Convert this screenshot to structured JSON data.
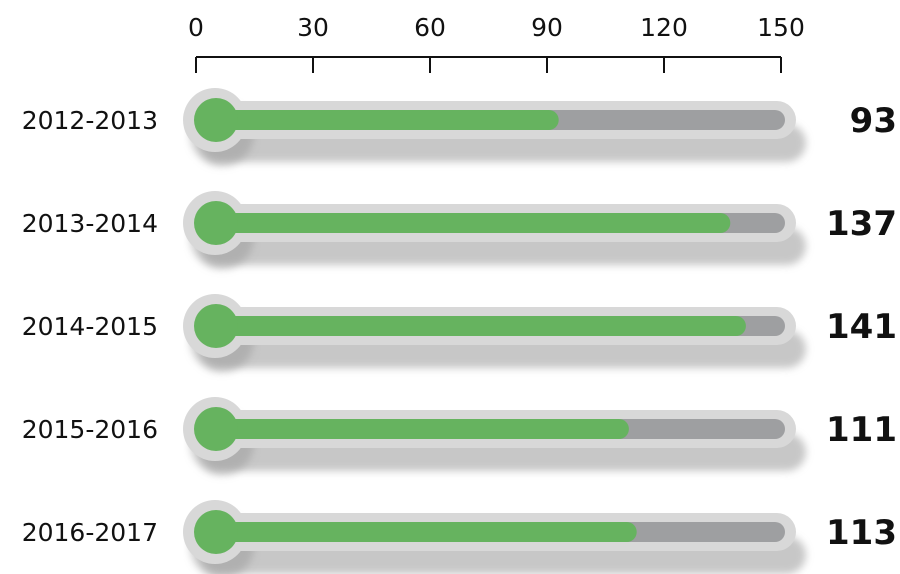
{
  "chart_data": {
    "type": "bar",
    "orientation": "horizontal",
    "style": "thermometer",
    "categories": [
      "2012-2013",
      "2013-2014",
      "2014-2015",
      "2015-2016",
      "2016-2017"
    ],
    "values": [
      93,
      137,
      141,
      111,
      113
    ],
    "value_labels": [
      "93",
      "137",
      "141",
      "111",
      "113"
    ],
    "xlim": [
      0,
      150
    ],
    "xticks": [
      0,
      30,
      60,
      90,
      120,
      150
    ],
    "tick_labels": [
      "0",
      "30",
      "60",
      "90",
      "120",
      "150"
    ],
    "axis_position": "top",
    "grid": false,
    "colors": {
      "fill": "#66b35f",
      "track": "#9e9fa1",
      "outline": "#d8d8d8",
      "shadow": "#9a9a9a",
      "axis": "#111111"
    }
  }
}
